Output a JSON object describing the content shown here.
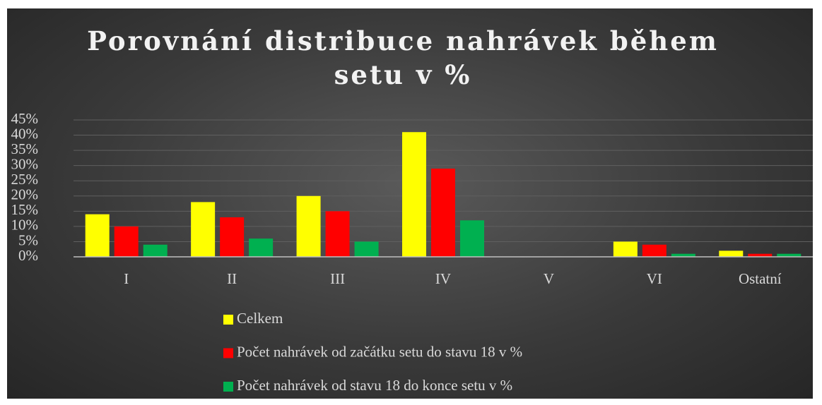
{
  "chart_data": {
    "type": "bar",
    "title": "Porovnání distribuce nahrávek během setu v %",
    "categories": [
      "I",
      "II",
      "III",
      "IV",
      "V",
      "VI",
      "Ostatní"
    ],
    "series": [
      {
        "name": "Celkem",
        "color": "#ffff00",
        "values": [
          14,
          18,
          20,
          41,
          0,
          5,
          2
        ]
      },
      {
        "name": "Počet nahrávek od začátku setu do stavu 18 v %",
        "color": "#ff0000",
        "values": [
          10,
          13,
          15,
          29,
          0,
          4,
          1
        ]
      },
      {
        "name": "Počet nahrávek od stavu 18 do konce setu v %",
        "color": "#00b050",
        "values": [
          4,
          6,
          5,
          12,
          0,
          1,
          1
        ]
      }
    ],
    "ylim": [
      0,
      45
    ],
    "yticks": [
      {
        "value": 0,
        "label": "0%"
      },
      {
        "value": 5,
        "label": "5%"
      },
      {
        "value": 10,
        "label": "10%"
      },
      {
        "value": 15,
        "label": "15%"
      },
      {
        "value": 20,
        "label": "20%"
      },
      {
        "value": 25,
        "label": "25%"
      },
      {
        "value": 30,
        "label": "30%"
      },
      {
        "value": 35,
        "label": "35%"
      },
      {
        "value": 40,
        "label": "40%"
      },
      {
        "value": 45,
        "label": "45%"
      }
    ],
    "grid": true,
    "legend": "bottom"
  }
}
